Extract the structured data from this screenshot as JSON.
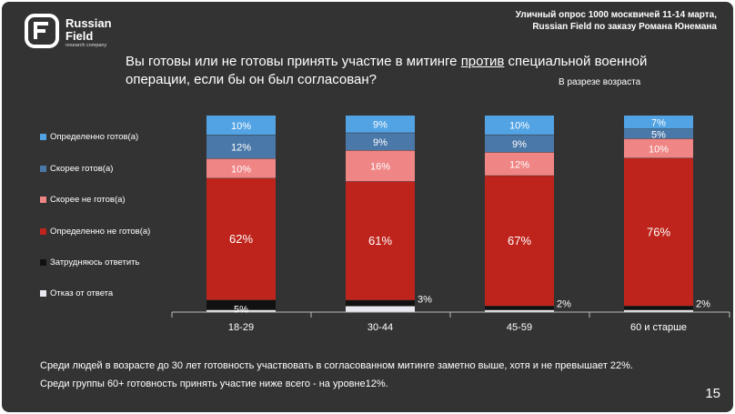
{
  "brand": {
    "name_line1": "Russian",
    "name_line2": "Field",
    "tagline": "research company"
  },
  "source": {
    "line1": "Уличный опрос 1000 москвичей 11-14 марта,",
    "line2": "Russian Field по заказу Романа Юнемана"
  },
  "question": {
    "part1": "Вы готовы или не готовы принять участие в митинге ",
    "underlined": "против",
    "part2": " специальной военной операции, если бы он был согласован?"
  },
  "subtitle": "В разрезе возраста",
  "chart_data": {
    "type": "bar",
    "stacked": true,
    "categories": [
      "18-29",
      "30-44",
      "45-59",
      "60 и старше"
    ],
    "series": [
      {
        "name": "Отказ от ответа",
        "color": "#e8e8ee",
        "values": [
          1,
          3,
          1,
          1
        ]
      },
      {
        "name": "Затрудняюсь ответить",
        "color": "#111111",
        "values": [
          5,
          3,
          2,
          2
        ]
      },
      {
        "name": "Определенно не готов(а)",
        "color": "#bf241c",
        "values": [
          62,
          61,
          67,
          76
        ]
      },
      {
        "name": "Скорее не готов(а)",
        "color": "#ef8585",
        "values": [
          10,
          16,
          12,
          10
        ]
      },
      {
        "name": "Скорее готов(а)",
        "color": "#4a78a8",
        "values": [
          12,
          9,
          9,
          5
        ]
      },
      {
        "name": "Определенно готов(а)",
        "color": "#52a3e4",
        "values": [
          10,
          9,
          10,
          7
        ]
      }
    ],
    "data_labels": [
      [
        "",
        "5%",
        "62%",
        "10%",
        "12%",
        "10%"
      ],
      [
        "",
        "3%",
        "61%",
        "16%",
        "9%",
        "9%"
      ],
      [
        "",
        "2%",
        "67%",
        "12%",
        "9%",
        "10%"
      ],
      [
        "",
        "2%",
        "76%",
        "10%",
        "5%",
        "7%"
      ]
    ],
    "ylim": [
      0,
      100
    ]
  },
  "legend": [
    {
      "label": "Определенно готов(а)",
      "color": "#52a3e4"
    },
    {
      "label": "Скорее готов(а)",
      "color": "#4a78a8"
    },
    {
      "label": "Скорее не готов(а)",
      "color": "#ef8585"
    },
    {
      "label": "Определенно не готов(а)",
      "color": "#bf241c"
    },
    {
      "label": "Затрудняюсь ответить",
      "color": "#111111"
    },
    {
      "label": "Отказ от ответа",
      "color": "#e8e8ee"
    }
  ],
  "footer": {
    "line1": "Среди людей в возрасте до 30 лет готовность участвовать в согласованном митинге заметно выше, хотя и не превышает 22%.",
    "line2": "Среди группы 60+ готовность принять участие ниже всего - на уровне12%."
  },
  "page_number": "15"
}
